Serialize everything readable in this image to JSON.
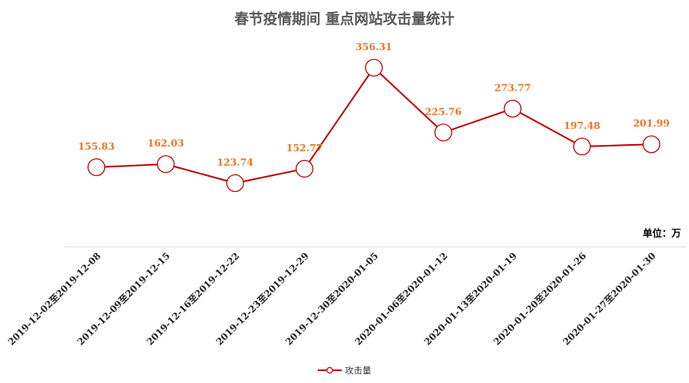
{
  "chart_data": {
    "type": "line",
    "title": "春节疫情期间  重点网站攻击量统计",
    "unit_label": "单位：万",
    "categories": [
      "2019-12-02至2019-12-08",
      "2019-12-09至2019-12-15",
      "2019-12-16至2019-12-22",
      "2019-12-23至2019-12-29",
      "2019-12-30至2020-01-05",
      "2020-01-06至2020-01-12",
      "2020-01-13至2020-01-19",
      "2020-01-20至2020-01-26",
      "2020-01-27至2020-01-30"
    ],
    "series": [
      {
        "name": "攻击量",
        "values": [
          155.83,
          162.03,
          123.74,
          152.77,
          356.31,
          225.76,
          273.77,
          197.48,
          201.99
        ],
        "labels": [
          "155.83",
          "162.03",
          "123.74",
          "152.77",
          "356.31",
          "225.76",
          "273.77",
          "197.48",
          "201.99"
        ],
        "color": "#c00000",
        "marker_fill": "#ffffff"
      }
    ],
    "label_color": "#e87722",
    "grid": false,
    "legend_position": "bottom"
  }
}
